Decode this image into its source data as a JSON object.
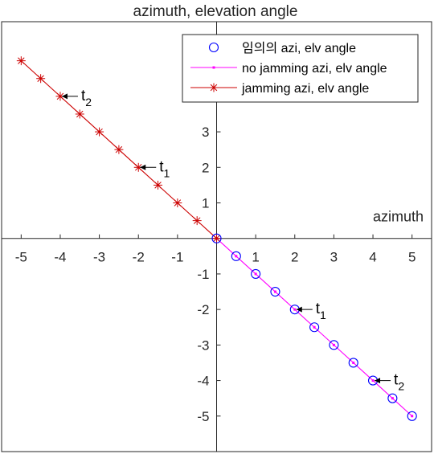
{
  "chart_data": {
    "type": "line",
    "title": "azimuth, elevation angle",
    "xlabel": "azimuth",
    "ylabel": "",
    "xlim": [
      -5.5,
      5.5
    ],
    "ylim": [
      -6,
      6.1
    ],
    "xticks": [
      -5,
      -4,
      -3,
      -2,
      -1,
      1,
      2,
      3,
      4,
      5
    ],
    "yticks": [
      -5,
      -4,
      -3,
      -2,
      -1,
      1,
      2,
      3
    ],
    "grid": false,
    "axes_through_origin": true,
    "legend_position": "top-right",
    "series": [
      {
        "name": "임의의 azi, elv angle",
        "marker": "circle",
        "line": "none",
        "color": "#0000ff",
        "x": [
          0,
          0.5,
          1,
          1.5,
          2,
          2.5,
          3,
          3.5,
          4,
          4.5,
          5
        ],
        "y": [
          0,
          -0.5,
          -1,
          -1.5,
          -2,
          -2.5,
          -3,
          -3.5,
          -4,
          -4.5,
          -5
        ]
      },
      {
        "name": "no jamming azi, elv angle",
        "marker": "point",
        "line": "solid",
        "color": "#ff00ff",
        "x": [
          0,
          0.5,
          1,
          1.5,
          2,
          2.5,
          3,
          3.5,
          4,
          4.5,
          5
        ],
        "y": [
          0,
          -0.5,
          -1,
          -1.5,
          -2,
          -2.5,
          -3,
          -3.5,
          -4,
          -4.5,
          -5
        ]
      },
      {
        "name": "jamming azi, elv angle",
        "marker": "asterisk",
        "line": "solid",
        "color": "#cc0000",
        "x": [
          0,
          -0.5,
          -1,
          -1.5,
          -2,
          -2.5,
          -3,
          -3.5,
          -4,
          -4.5,
          -5
        ],
        "y": [
          0,
          0.5,
          1,
          1.5,
          2,
          2.5,
          3,
          3.5,
          4,
          4.5,
          5
        ]
      }
    ],
    "annotations": [
      {
        "text": "t",
        "sub": "2",
        "x": -4,
        "y": 4
      },
      {
        "text": "t",
        "sub": "1",
        "x": -2,
        "y": 2
      },
      {
        "text": "t",
        "sub": "1",
        "x": 2,
        "y": -2
      },
      {
        "text": "t",
        "sub": "2",
        "x": 4,
        "y": -4
      }
    ]
  }
}
